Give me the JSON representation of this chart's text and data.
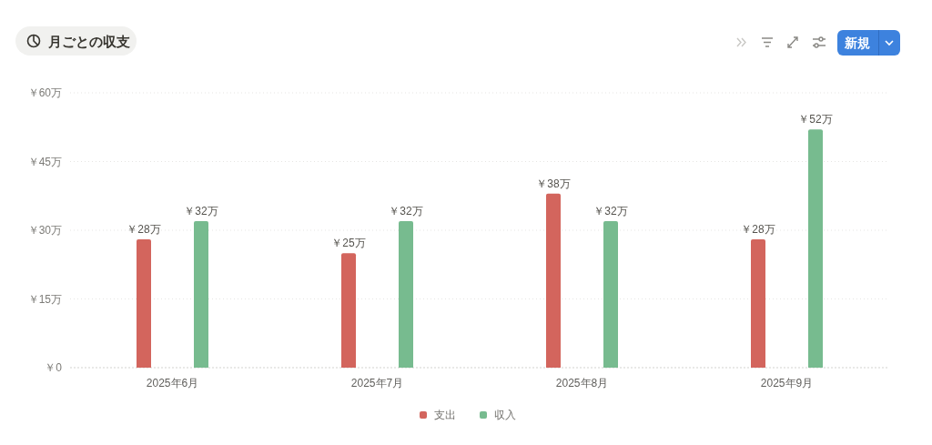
{
  "chart_data": {
    "type": "bar",
    "title": "月ごとの収支",
    "categories": [
      "2025年6月",
      "2025年7月",
      "2025年8月",
      "2025年9月"
    ],
    "series": [
      {
        "name": "支出",
        "color": "#d3655d",
        "values": [
          28,
          25,
          38,
          28
        ],
        "value_labels": [
          "￥28万",
          "￥25万",
          "￥38万",
          "￥28万"
        ]
      },
      {
        "name": "収入",
        "color": "#77bb8f",
        "values": [
          32,
          32,
          32,
          52
        ],
        "value_labels": [
          "￥32万",
          "￥32万",
          "￥32万",
          "￥52万"
        ]
      }
    ],
    "ylim": [
      0,
      60
    ],
    "yticks": [
      {
        "value": 0,
        "label": "￥0"
      },
      {
        "value": 15,
        "label": "￥15万"
      },
      {
        "value": 30,
        "label": "￥30万"
      },
      {
        "value": 45,
        "label": "￥45万"
      },
      {
        "value": 60,
        "label": "￥60万"
      }
    ],
    "grid": "y",
    "legend": "bottom",
    "annotations": [
      "新規"
    ]
  }
}
